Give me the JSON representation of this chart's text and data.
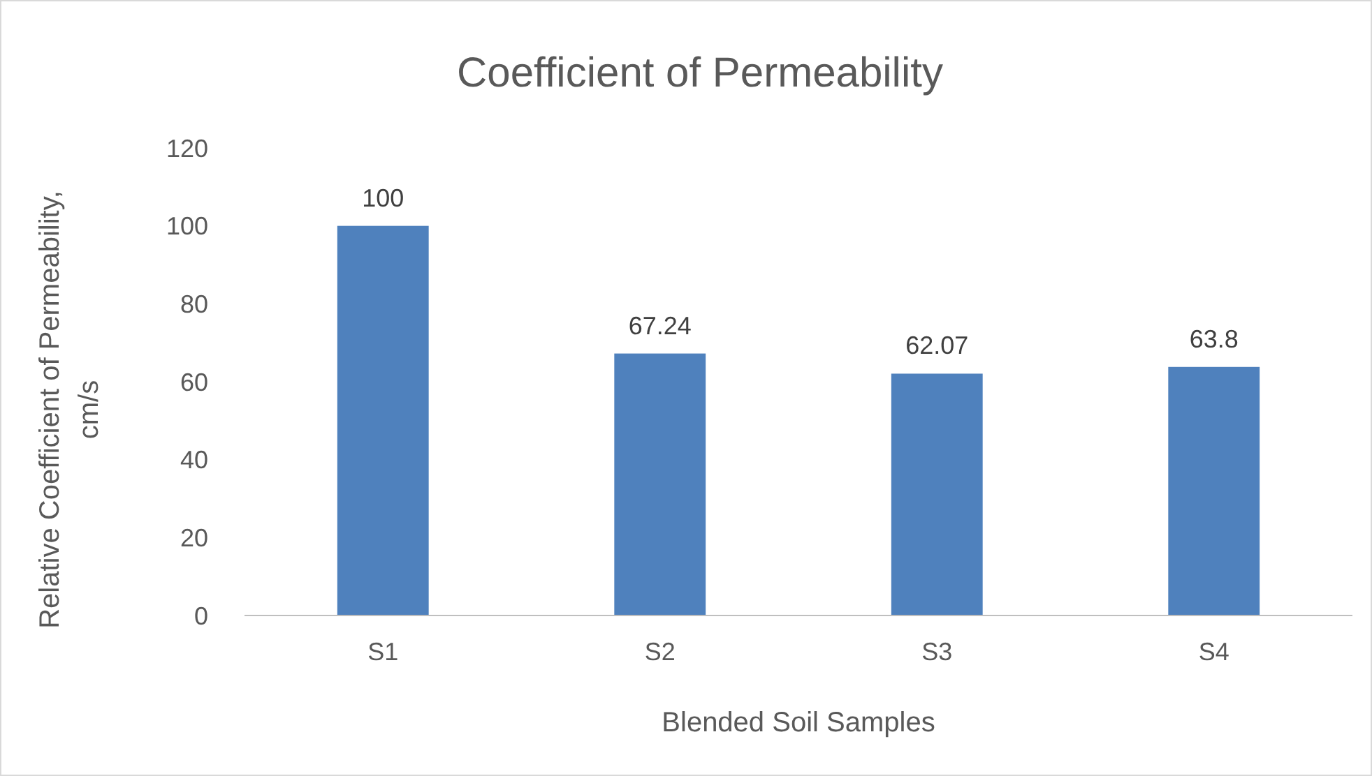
{
  "chart_data": {
    "type": "bar",
    "title": "Coefficient of Permeability",
    "xlabel": "Blended Soil Samples",
    "ylabel": "Relative Coefficient of Permeability, cm/s",
    "categories": [
      "S1",
      "S2",
      "S3",
      "S4"
    ],
    "values": [
      100,
      67.24,
      62.07,
      63.8
    ],
    "color": "#4f81bd",
    "ylim": [
      0,
      120
    ],
    "yticks": [
      0,
      20,
      40,
      60,
      80,
      100,
      120
    ],
    "data_labels": true
  }
}
